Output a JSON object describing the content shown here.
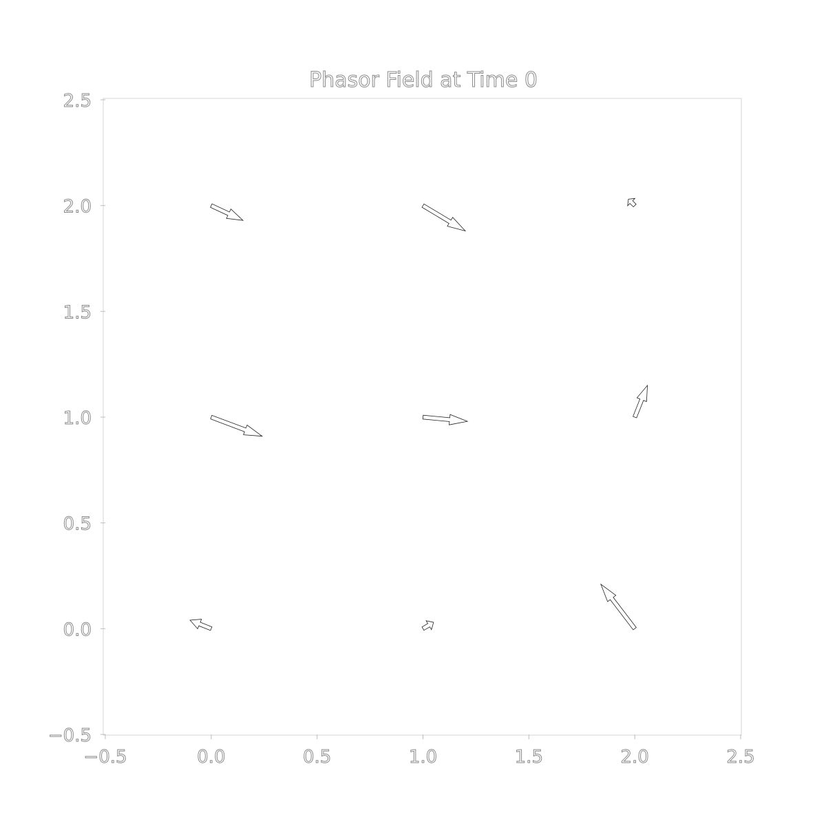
{
  "chart_data": {
    "type": "quiver",
    "title": "Phasor Field at Time 0",
    "xlabel": "",
    "ylabel": "",
    "xlim": [
      -0.5,
      2.5
    ],
    "ylim": [
      -0.5,
      2.5
    ],
    "xticks": [
      "−0.5",
      "0.0",
      "0.5",
      "1.0",
      "1.5",
      "2.0",
      "2.5"
    ],
    "yticks": [
      "−0.5",
      "0.0",
      "0.5",
      "1.0",
      "1.5",
      "2.0",
      "2.5"
    ],
    "xtick_values": [
      -0.5,
      0.0,
      0.5,
      1.0,
      1.5,
      2.0,
      2.5
    ],
    "ytick_values": [
      -0.5,
      0.0,
      0.5,
      1.0,
      1.5,
      2.0,
      2.5
    ],
    "grid": false,
    "vectors": [
      {
        "x": 0.0,
        "y": 0.0,
        "u": -0.1,
        "v": 0.04
      },
      {
        "x": 1.0,
        "y": 0.0,
        "u": 0.05,
        "v": 0.03
      },
      {
        "x": 2.0,
        "y": 0.0,
        "u": -0.16,
        "v": 0.21
      },
      {
        "x": 0.0,
        "y": 1.0,
        "u": 0.24,
        "v": -0.09
      },
      {
        "x": 1.0,
        "y": 1.0,
        "u": 0.21,
        "v": -0.02
      },
      {
        "x": 2.0,
        "y": 1.0,
        "u": 0.06,
        "v": 0.15
      },
      {
        "x": 0.0,
        "y": 2.0,
        "u": 0.15,
        "v": -0.07
      },
      {
        "x": 1.0,
        "y": 2.0,
        "u": 0.2,
        "v": -0.12
      },
      {
        "x": 2.0,
        "y": 2.0,
        "u": -0.03,
        "v": 0.03
      }
    ]
  }
}
